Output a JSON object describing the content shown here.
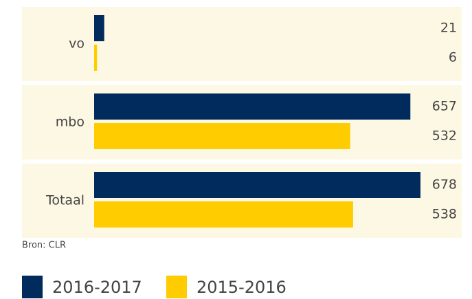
{
  "chart_data": {
    "type": "bar",
    "orientation": "horizontal",
    "categories": [
      "vo",
      "mbo",
      "Totaal"
    ],
    "series": [
      {
        "name": "2016-2017",
        "color": "#002b5c",
        "values": [
          21,
          657,
          678
        ]
      },
      {
        "name": "2015-2016",
        "color": "#ffcc00",
        "values": [
          6,
          532,
          538
        ]
      }
    ],
    "source": "Bron: CLR"
  }
}
